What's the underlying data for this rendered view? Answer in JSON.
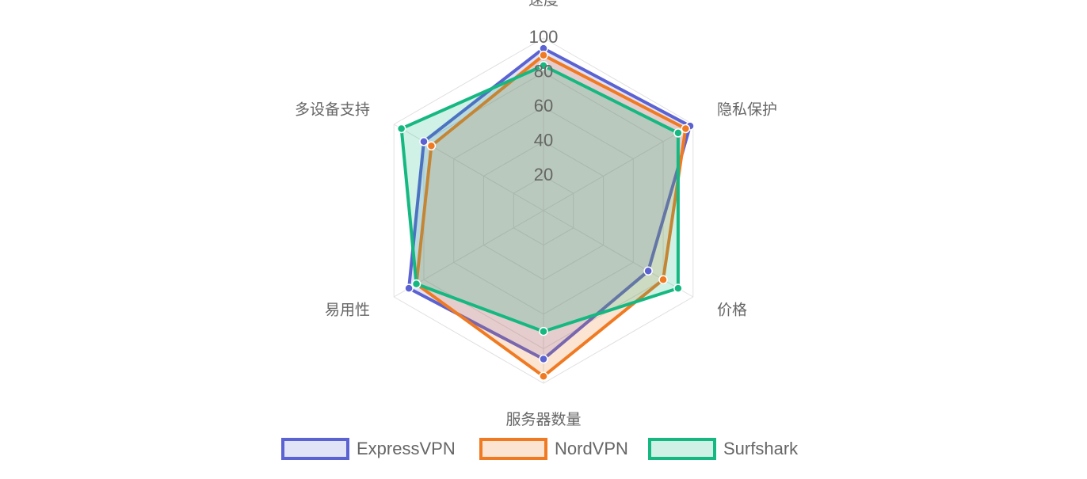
{
  "chart_data": {
    "type": "radar",
    "categories": [
      "速度",
      "隐私保护",
      "价格",
      "服务器数量",
      "易用性",
      "多设备支持"
    ],
    "rlim": [
      0,
      100
    ],
    "rticks": [
      20,
      40,
      60,
      80,
      100
    ],
    "series": [
      {
        "name": "ExpressVPN",
        "color": "#5b62d1",
        "fill": "rgba(91,98,209,0.18)",
        "values": [
          94,
          98,
          70,
          86,
          90,
          80
        ]
      },
      {
        "name": "NordVPN",
        "color": "#f07a22",
        "fill": "rgba(240,122,34,0.2)",
        "values": [
          90,
          95,
          80,
          96,
          85,
          75
        ]
      },
      {
        "name": "Surfshark",
        "color": "#16b882",
        "fill": "rgba(22,184,130,0.2)",
        "values": [
          84,
          90,
          90,
          70,
          85,
          95
        ]
      }
    ]
  }
}
